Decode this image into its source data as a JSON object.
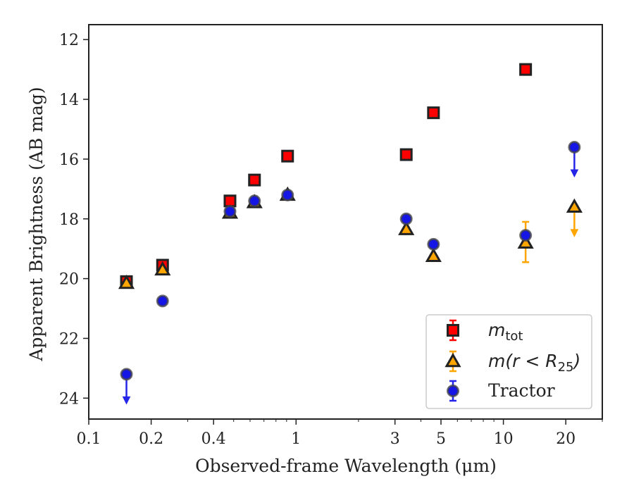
{
  "chart_data": {
    "type": "scatter",
    "xlabel": "Observed-frame Wavelength (μm)",
    "ylabel": "Apparent Brightness (AB mag)",
    "xscale": "log",
    "xlim": [
      0.1,
      30
    ],
    "ylim": [
      24.7,
      11.5
    ],
    "y_inverted": true,
    "x_ticks": [
      0.1,
      0.2,
      0.4,
      1,
      3,
      5,
      10,
      20
    ],
    "x_tick_labels": [
      "0.1",
      "0.2",
      "0.4",
      "1",
      "3",
      "5",
      "10",
      "20"
    ],
    "y_ticks": [
      12,
      14,
      16,
      18,
      20,
      22,
      24
    ],
    "y_tick_labels": [
      "12",
      "14",
      "16",
      "18",
      "20",
      "22",
      "24"
    ],
    "grid": false,
    "legend_position": "lower-right",
    "series": [
      {
        "name": "m_tot",
        "legend_label": "m_tot",
        "marker": "square",
        "face_color": "#ff0000",
        "edge_color": "#222222",
        "error_color": "#ff0000",
        "points": [
          {
            "x": 0.152,
            "y": 20.1
          },
          {
            "x": 0.227,
            "y": 19.55
          },
          {
            "x": 0.48,
            "y": 17.4
          },
          {
            "x": 0.63,
            "y": 16.7
          },
          {
            "x": 0.91,
            "y": 15.9
          },
          {
            "x": 3.4,
            "y": 15.85
          },
          {
            "x": 4.6,
            "y": 14.45
          },
          {
            "x": 12.8,
            "y": 13.0
          }
        ]
      },
      {
        "name": "m(r<R25)",
        "legend_label": "m(r < R25)",
        "marker": "triangle",
        "face_color": "#ffa500",
        "edge_color": "#222222",
        "error_color": "#ffa500",
        "points": [
          {
            "x": 0.152,
            "y": 20.15
          },
          {
            "x": 0.227,
            "y": 19.7
          },
          {
            "x": 0.48,
            "y": 17.8
          },
          {
            "x": 0.63,
            "y": 17.45
          },
          {
            "x": 0.91,
            "y": 17.2
          },
          {
            "x": 3.4,
            "y": 18.35
          },
          {
            "x": 4.6,
            "y": 19.25
          },
          {
            "x": 12.8,
            "y": 18.8,
            "err_low": 18.1,
            "err_high": 19.45
          },
          {
            "x": 22.0,
            "y": 17.6,
            "upper_limit": true
          }
        ]
      },
      {
        "name": "Tractor",
        "legend_label": "Tractor",
        "marker": "circle",
        "face_color": "#1515e6",
        "edge_color": "#444444",
        "error_color": "#2525e8",
        "points": [
          {
            "x": 0.152,
            "y": 23.2,
            "upper_limit": true
          },
          {
            "x": 0.227,
            "y": 20.75
          },
          {
            "x": 0.48,
            "y": 17.75
          },
          {
            "x": 0.63,
            "y": 17.4
          },
          {
            "x": 0.91,
            "y": 17.2
          },
          {
            "x": 3.4,
            "y": 18.0
          },
          {
            "x": 4.6,
            "y": 18.85
          },
          {
            "x": 12.8,
            "y": 18.55
          },
          {
            "x": 22.0,
            "y": 15.6,
            "upper_limit": true
          }
        ]
      }
    ]
  }
}
